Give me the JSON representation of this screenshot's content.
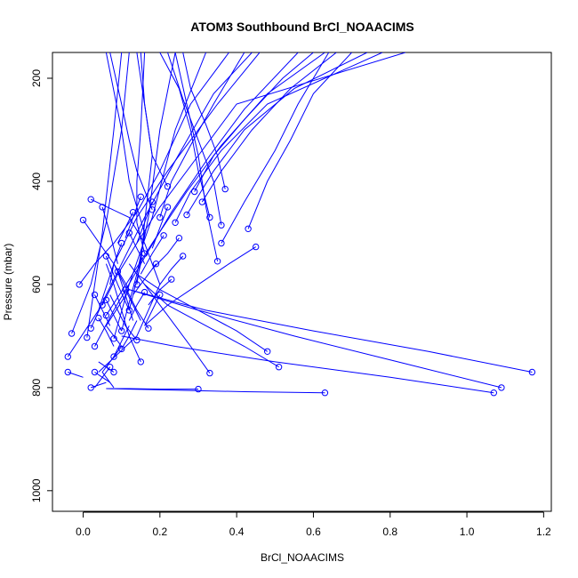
{
  "chart_data": {
    "type": "line",
    "title": "ATOM3 Southbound BrCl_NOAACIMS",
    "xlabel": "BrCl_NOAACIMS",
    "ylabel": "Pressure (mbar)",
    "xlim": [
      -0.08,
      1.22
    ],
    "ylim": [
      1040,
      150
    ],
    "y_reversed": true,
    "x_ticks": [
      0.0,
      0.2,
      0.4,
      0.6,
      0.8,
      1.0,
      1.2
    ],
    "x_tick_labels": [
      "0.0",
      "0.2",
      "0.4",
      "0.6",
      "0.8",
      "1.0",
      "1.2"
    ],
    "y_ticks": [
      200,
      400,
      600,
      800,
      1000
    ],
    "y_tick_labels": [
      "200",
      "400",
      "600",
      "800",
      "1000"
    ],
    "series_color": "#0000ff",
    "grid": false,
    "legend": "none",
    "series": [
      {
        "x": [
          0.0,
          0.08,
          0.12,
          0.06,
          0.1,
          0.05,
          0.08
        ],
        "y": [
          475,
          560,
          610,
          680,
          720,
          770,
          800
        ]
      },
      {
        "x": [
          0.02,
          0.12,
          0.16,
          0.2,
          0.14,
          0.04
        ],
        "y": [
          435,
          470,
          520,
          600,
          700,
          770
        ]
      },
      {
        "x": [
          -0.04,
          0.04,
          0.08,
          0.14,
          0.22,
          0.35,
          0.46
        ],
        "y": [
          740,
          650,
          560,
          470,
          380,
          250,
          150
        ]
      },
      {
        "x": [
          -0.03,
          0.02,
          0.06,
          0.1,
          0.12
        ],
        "y": [
          695,
          600,
          480,
          300,
          150
        ]
      },
      {
        "x": [
          0.01,
          0.03,
          0.05,
          0.08,
          0.1
        ],
        "y": [
          703,
          600,
          500,
          300,
          150
        ]
      },
      {
        "x": [
          -0.01,
          0.03,
          0.08,
          0.14,
          0.2,
          0.28,
          0.38
        ],
        "y": [
          600,
          560,
          520,
          460,
          380,
          250,
          150
        ]
      },
      {
        "x": [
          0.02,
          0.06,
          0.1,
          0.16,
          0.24,
          0.34,
          0.44
        ],
        "y": [
          685,
          620,
          560,
          470,
          360,
          230,
          150
        ]
      },
      {
        "x": [
          0.05,
          0.09,
          0.14,
          0.2,
          0.3,
          0.4,
          0.84
        ],
        "y": [
          640,
          580,
          520,
          450,
          350,
          250,
          150
        ]
      },
      {
        "x": [
          0.06,
          0.12,
          0.18,
          0.27,
          0.36,
          0.48,
          0.63
        ],
        "y": [
          660,
          590,
          520,
          420,
          330,
          230,
          150
        ]
      },
      {
        "x": [
          0.03,
          0.08,
          0.15,
          0.23,
          0.33,
          0.42,
          0.56
        ],
        "y": [
          720,
          650,
          560,
          460,
          350,
          260,
          150
        ]
      },
      {
        "x": [
          0.08,
          0.12,
          0.18,
          0.24,
          0.32
        ],
        "y": [
          705,
          600,
          470,
          300,
          150
        ]
      },
      {
        "x": [
          0.1,
          0.14,
          0.17,
          0.2,
          0.24
        ],
        "y": [
          690,
          580,
          470,
          300,
          150
        ]
      },
      {
        "x": [
          0.12,
          0.15,
          0.16,
          0.18,
          0.14
        ],
        "y": [
          650,
          560,
          480,
          350,
          150
        ]
      },
      {
        "x": [
          0.14,
          0.16,
          0.12,
          0.1,
          0.06
        ],
        "y": [
          600,
          500,
          400,
          300,
          150
        ]
      },
      {
        "x": [
          0.16,
          0.14,
          0.14,
          0.15,
          0.16
        ],
        "y": [
          540,
          480,
          400,
          300,
          150
        ]
      },
      {
        "x": [
          0.18,
          0.14,
          0.12,
          0.1,
          0.07
        ],
        "y": [
          455,
          380,
          320,
          250,
          150
        ]
      },
      {
        "x": [
          0.22,
          0.18,
          0.17,
          0.16,
          0.15
        ],
        "y": [
          410,
          350,
          300,
          250,
          150
        ]
      },
      {
        "x": [
          0.2,
          0.23,
          0.28,
          0.34,
          0.42
        ],
        "y": [
          470,
          400,
          330,
          250,
          150
        ]
      },
      {
        "x": [
          0.24,
          0.28,
          0.36,
          0.48,
          0.78
        ],
        "y": [
          480,
          420,
          340,
          250,
          150
        ]
      },
      {
        "x": [
          0.27,
          0.34,
          0.42,
          0.55,
          0.74
        ],
        "y": [
          465,
          380,
          300,
          220,
          150
        ]
      },
      {
        "x": [
          0.29,
          0.34,
          0.42,
          0.52,
          0.6
        ],
        "y": [
          420,
          350,
          280,
          200,
          150
        ]
      },
      {
        "x": [
          0.31,
          0.36,
          0.44,
          0.54,
          0.66
        ],
        "y": [
          440,
          380,
          300,
          220,
          150
        ]
      },
      {
        "x": [
          0.33,
          0.3,
          0.28,
          0.25,
          0.2
        ],
        "y": [
          470,
          380,
          300,
          220,
          150
        ]
      },
      {
        "x": [
          0.35,
          0.32,
          0.3,
          0.27,
          0.24
        ],
        "y": [
          555,
          450,
          350,
          250,
          150
        ]
      },
      {
        "x": [
          0.36,
          0.34,
          0.3,
          0.26,
          0.22
        ],
        "y": [
          485,
          400,
          320,
          240,
          150
        ]
      },
      {
        "x": [
          0.37,
          0.35,
          0.32,
          0.28,
          0.26
        ],
        "y": [
          415,
          350,
          290,
          220,
          150
        ]
      },
      {
        "x": [
          0.36,
          0.42,
          0.5,
          0.56,
          0.64
        ],
        "y": [
          520,
          440,
          340,
          250,
          150
        ]
      },
      {
        "x": [
          0.43,
          0.48,
          0.54,
          0.6,
          0.7
        ],
        "y": [
          492,
          400,
          320,
          230,
          150
        ]
      },
      {
        "x": [
          0.45,
          0.38,
          0.3,
          0.22,
          0.16
        ],
        "y": [
          527,
          560,
          600,
          640,
          680
        ]
      },
      {
        "x": [
          0.48,
          0.4,
          0.3,
          0.2,
          0.14
        ],
        "y": [
          730,
          690,
          650,
          610,
          580
        ]
      },
      {
        "x": [
          0.51,
          0.42,
          0.32,
          0.22,
          0.16
        ],
        "y": [
          760,
          720,
          680,
          640,
          600
        ]
      },
      {
        "x": [
          0.33,
          0.28,
          0.22,
          0.16,
          0.12
        ],
        "y": [
          772,
          720,
          660,
          600,
          560
        ]
      },
      {
        "x": [
          0.63,
          0.42,
          0.24,
          0.12,
          0.06
        ],
        "y": [
          810,
          808,
          805,
          803,
          802
        ]
      },
      {
        "x": [
          0.3,
          0.2,
          0.12,
          0.06
        ],
        "y": [
          803,
          803,
          802,
          802
        ]
      },
      {
        "x": [
          1.17,
          0.9,
          0.6,
          0.32,
          0.12
        ],
        "y": [
          770,
          730,
          690,
          650,
          610
        ]
      },
      {
        "x": [
          1.09,
          0.82,
          0.55,
          0.3,
          0.12
        ],
        "y": [
          800,
          750,
          700,
          650,
          610
        ]
      },
      {
        "x": [
          1.07,
          0.8,
          0.5,
          0.24,
          0.1
        ],
        "y": [
          810,
          780,
          750,
          720,
          700
        ]
      },
      {
        "x": [
          0.15,
          0.12,
          0.1,
          0.08,
          0.06
        ],
        "y": [
          750,
          700,
          650,
          600,
          560
        ]
      },
      {
        "x": [
          0.17,
          0.14,
          0.12,
          0.1,
          0.08
        ],
        "y": [
          685,
          650,
          620,
          590,
          560
        ]
      },
      {
        "x": [
          0.14,
          0.11,
          0.09,
          0.07
        ],
        "y": [
          708,
          680,
          650,
          620
        ]
      },
      {
        "x": [
          0.1,
          0.08,
          0.07
        ],
        "y": [
          520,
          560,
          600
        ]
      },
      {
        "x": [
          0.05,
          0.07,
          0.09
        ],
        "y": [
          450,
          500,
          560
        ]
      },
      {
        "x": [
          0.06,
          0.09,
          0.12
        ],
        "y": [
          545,
          600,
          650
        ]
      },
      {
        "x": [
          0.09,
          0.11,
          0.13
        ],
        "y": [
          575,
          620,
          670
        ]
      },
      {
        "x": [
          0.07,
          0.05,
          0.03
        ],
        "y": [
          760,
          780,
          800
        ]
      },
      {
        "x": [
          0.03,
          0.05,
          0.07
        ],
        "y": [
          770,
          780,
          790
        ]
      },
      {
        "x": [
          -0.04,
          -0.02,
          0.0
        ],
        "y": [
          770,
          775,
          780
        ]
      },
      {
        "x": [
          0.02,
          0.04,
          0.06
        ],
        "y": [
          800,
          795,
          790
        ]
      },
      {
        "x": [
          0.08,
          0.06,
          0.04
        ],
        "y": [
          770,
          760,
          750
        ]
      },
      {
        "x": [
          0.12,
          0.14,
          0.16
        ],
        "y": [
          500,
          530,
          560
        ]
      },
      {
        "x": [
          0.21,
          0.18,
          0.15
        ],
        "y": [
          505,
          540,
          580
        ]
      },
      {
        "x": [
          0.25,
          0.22,
          0.18
        ],
        "y": [
          510,
          540,
          570
        ]
      },
      {
        "x": [
          0.19,
          0.16,
          0.13
        ],
        "y": [
          560,
          590,
          620
        ]
      },
      {
        "x": [
          0.23,
          0.2,
          0.17
        ],
        "y": [
          590,
          610,
          640
        ]
      },
      {
        "x": [
          0.26,
          0.23,
          0.2
        ],
        "y": [
          545,
          570,
          600
        ]
      },
      {
        "x": [
          0.13,
          0.11,
          0.09
        ],
        "y": [
          460,
          490,
          520
        ]
      },
      {
        "x": [
          0.15,
          0.13,
          0.11
        ],
        "y": [
          430,
          470,
          510
        ]
      },
      {
        "x": [
          0.18,
          0.16,
          0.14
        ],
        "y": [
          440,
          480,
          520
        ]
      },
      {
        "x": [
          0.22,
          0.2,
          0.18
        ],
        "y": [
          450,
          490,
          530
        ]
      },
      {
        "x": [
          0.06,
          0.08,
          0.1
        ],
        "y": [
          630,
          660,
          690
        ]
      },
      {
        "x": [
          0.04,
          0.06,
          0.08
        ],
        "y": [
          665,
          690,
          720
        ]
      },
      {
        "x": [
          0.08,
          0.1,
          0.12
        ],
        "y": [
          740,
          710,
          680
        ]
      },
      {
        "x": [
          0.1,
          0.12,
          0.14
        ],
        "y": [
          725,
          700,
          670
        ]
      },
      {
        "x": [
          0.03,
          0.05,
          0.07
        ],
        "y": [
          620,
          650,
          680
        ]
      },
      {
        "x": [
          0.11,
          0.13,
          0.15
        ],
        "y": [
          610,
          640,
          670
        ]
      },
      {
        "x": [
          0.16,
          0.14,
          0.12
        ],
        "y": [
          615,
          640,
          670
        ]
      },
      {
        "x": [
          0.2,
          0.18,
          0.16
        ],
        "y": [
          620,
          650,
          680
        ]
      }
    ]
  }
}
